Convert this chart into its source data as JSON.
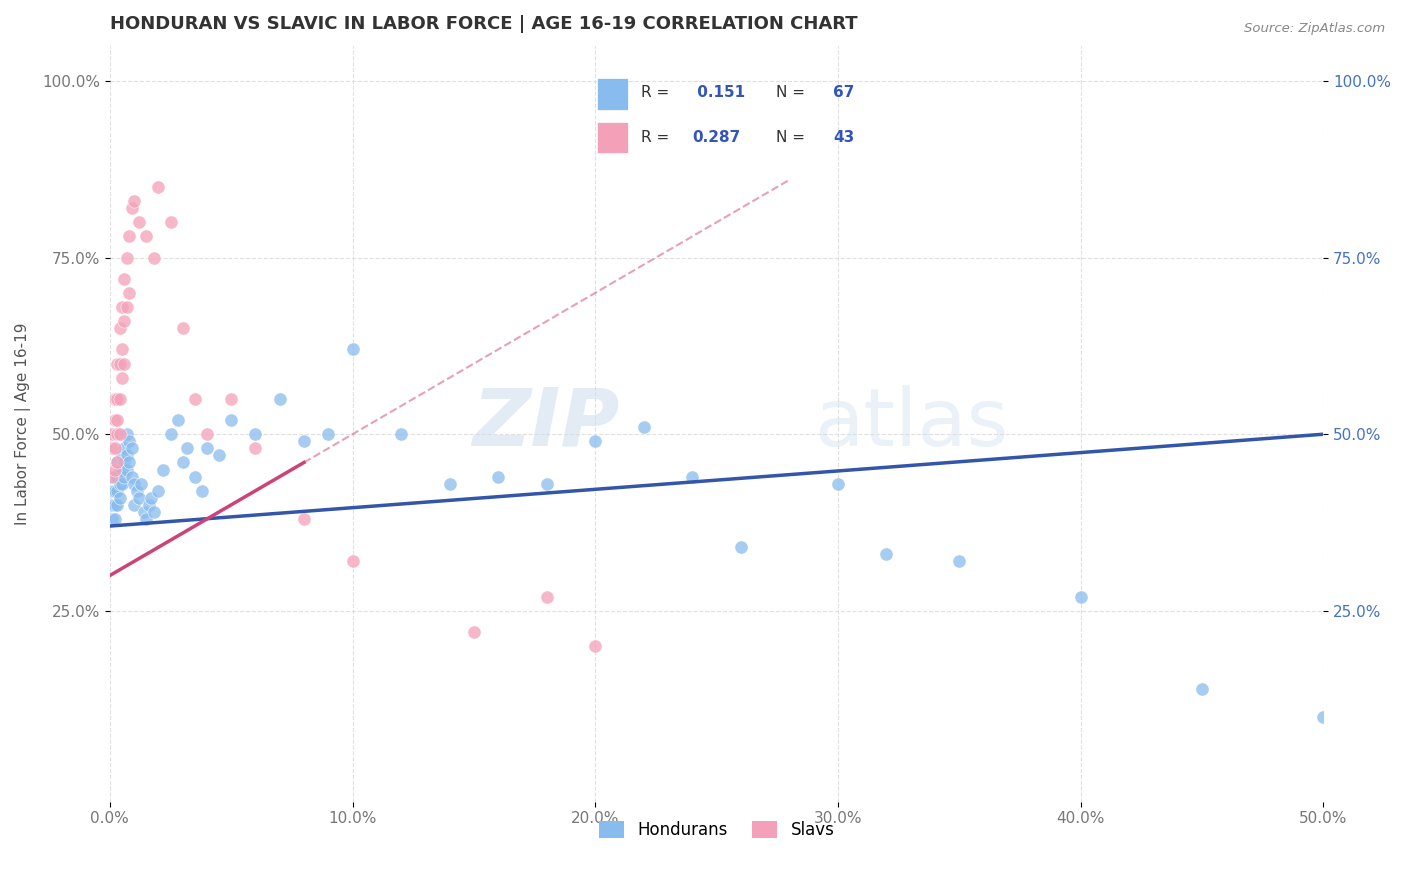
{
  "title": "HONDURAN VS SLAVIC IN LABOR FORCE | AGE 16-19 CORRELATION CHART",
  "source_text": "Source: ZipAtlas.com",
  "ylabel": "In Labor Force | Age 16-19",
  "xlim": [
    0.0,
    0.5
  ],
  "ylim": [
    -0.02,
    1.05
  ],
  "xtick_vals": [
    0.0,
    0.1,
    0.2,
    0.3,
    0.4,
    0.5
  ],
  "xtick_labels": [
    "0.0%",
    "10.0%",
    "20.0%",
    "30.0%",
    "40.0%",
    "50.0%"
  ],
  "ytick_vals": [
    0.25,
    0.5,
    0.75,
    1.0
  ],
  "ytick_labels": [
    "25.0%",
    "50.0%",
    "75.0%",
    "100.0%"
  ],
  "honduran_color": "#88bbee",
  "slavic_color": "#f4a0b8",
  "honduran_line_color": "#3355aa",
  "slavic_line_color": "#cc4477",
  "R_honduran": 0.151,
  "N_honduran": 67,
  "R_slavic": 0.287,
  "N_slavic": 43,
  "background_color": "#ffffff",
  "grid_color": "#dddddd",
  "honduran_x": [
    0.001,
    0.001,
    0.001,
    0.002,
    0.002,
    0.002,
    0.002,
    0.003,
    0.003,
    0.003,
    0.003,
    0.004,
    0.004,
    0.004,
    0.005,
    0.005,
    0.005,
    0.006,
    0.006,
    0.006,
    0.007,
    0.007,
    0.007,
    0.008,
    0.008,
    0.009,
    0.009,
    0.01,
    0.01,
    0.011,
    0.012,
    0.013,
    0.014,
    0.015,
    0.016,
    0.017,
    0.018,
    0.02,
    0.022,
    0.025,
    0.028,
    0.03,
    0.032,
    0.035,
    0.038,
    0.04,
    0.045,
    0.05,
    0.06,
    0.07,
    0.08,
    0.09,
    0.1,
    0.12,
    0.14,
    0.16,
    0.18,
    0.2,
    0.22,
    0.24,
    0.26,
    0.3,
    0.32,
    0.35,
    0.4,
    0.45,
    0.5
  ],
  "honduran_y": [
    0.42,
    0.4,
    0.38,
    0.44,
    0.42,
    0.4,
    0.38,
    0.46,
    0.44,
    0.42,
    0.4,
    0.45,
    0.43,
    0.41,
    0.47,
    0.45,
    0.43,
    0.48,
    0.46,
    0.44,
    0.5,
    0.47,
    0.45,
    0.49,
    0.46,
    0.48,
    0.44,
    0.43,
    0.4,
    0.42,
    0.41,
    0.43,
    0.39,
    0.38,
    0.4,
    0.41,
    0.39,
    0.42,
    0.45,
    0.5,
    0.52,
    0.46,
    0.48,
    0.44,
    0.42,
    0.48,
    0.47,
    0.52,
    0.5,
    0.55,
    0.49,
    0.5,
    0.62,
    0.5,
    0.43,
    0.44,
    0.43,
    0.49,
    0.51,
    0.44,
    0.34,
    0.43,
    0.33,
    0.32,
    0.27,
    0.14,
    0.1
  ],
  "slavic_x": [
    0.001,
    0.001,
    0.001,
    0.002,
    0.002,
    0.002,
    0.002,
    0.003,
    0.003,
    0.003,
    0.003,
    0.003,
    0.004,
    0.004,
    0.004,
    0.004,
    0.005,
    0.005,
    0.005,
    0.006,
    0.006,
    0.006,
    0.007,
    0.007,
    0.008,
    0.008,
    0.009,
    0.01,
    0.012,
    0.015,
    0.018,
    0.02,
    0.025,
    0.03,
    0.035,
    0.04,
    0.05,
    0.06,
    0.08,
    0.1,
    0.15,
    0.18,
    0.2
  ],
  "slavic_y": [
    0.5,
    0.48,
    0.44,
    0.55,
    0.52,
    0.48,
    0.45,
    0.6,
    0.55,
    0.52,
    0.5,
    0.46,
    0.65,
    0.6,
    0.55,
    0.5,
    0.68,
    0.62,
    0.58,
    0.72,
    0.66,
    0.6,
    0.75,
    0.68,
    0.78,
    0.7,
    0.82,
    0.83,
    0.8,
    0.78,
    0.75,
    0.85,
    0.8,
    0.65,
    0.55,
    0.5,
    0.55,
    0.48,
    0.38,
    0.32,
    0.22,
    0.27,
    0.2
  ],
  "slavic_line_x0": 0.0,
  "slavic_line_x1": 0.28,
  "honduran_line_x0": 0.0,
  "honduran_line_x1": 0.5
}
